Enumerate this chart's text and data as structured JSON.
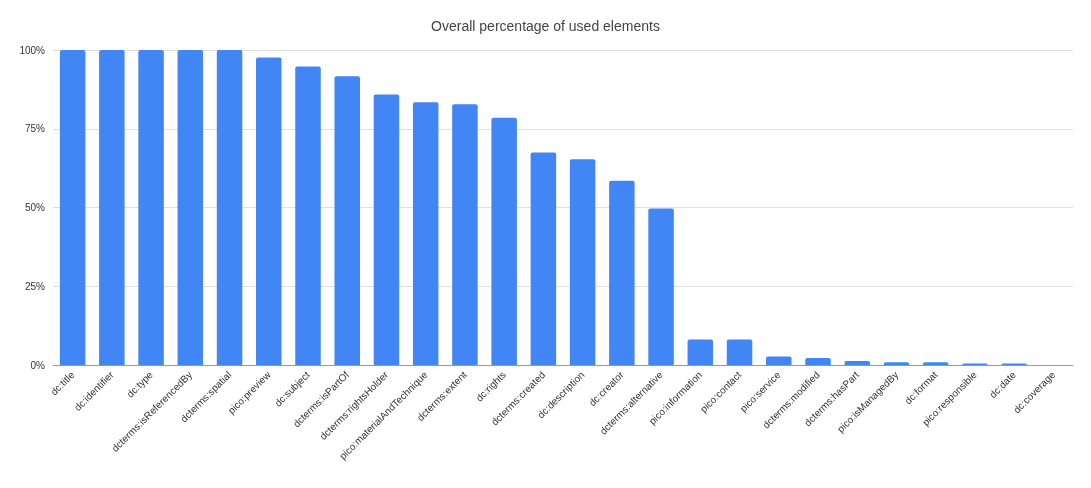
{
  "chart_data": {
    "type": "bar",
    "title": "Overall percentage of used elements",
    "categories": [
      "dc:title",
      "dc:identifier",
      "dc:type",
      "dcterms:isReferencedBy",
      "dcterms:spatial",
      "pico:preview",
      "dc:subject",
      "dcterms:isPartOf",
      "dcterms:rightsHolder",
      "pico:materialAndTechnique",
      "dcterms:extent",
      "dc:rights",
      "dcterms:created",
      "dc:description",
      "dc:creator",
      "dcterms:alternative",
      "pico:information",
      "pico:contact",
      "pico:service",
      "dcterms:modified",
      "dcterms:hasPart",
      "pico:isManagedBy",
      "dc:format",
      "pico:responsible",
      "dc:date",
      "dc:coverage"
    ],
    "values": [
      100,
      100,
      100,
      100,
      100,
      97.6,
      94.8,
      91.7,
      85.9,
      83.4,
      82.8,
      78.5,
      67.5,
      65.3,
      58.5,
      49.7,
      8.1,
      8.1,
      2.7,
      2.2,
      1.3,
      0.9,
      0.9,
      0.5,
      0.5,
      0
    ],
    "color": "#4285f4",
    "ylim": [
      0,
      100
    ],
    "yticks": [
      {
        "value": 0,
        "label": "0%"
      },
      {
        "value": 25,
        "label": "25%"
      },
      {
        "value": 50,
        "label": "50%"
      },
      {
        "value": 75,
        "label": "75%"
      },
      {
        "value": 100,
        "label": "100%"
      }
    ],
    "grid": true
  }
}
